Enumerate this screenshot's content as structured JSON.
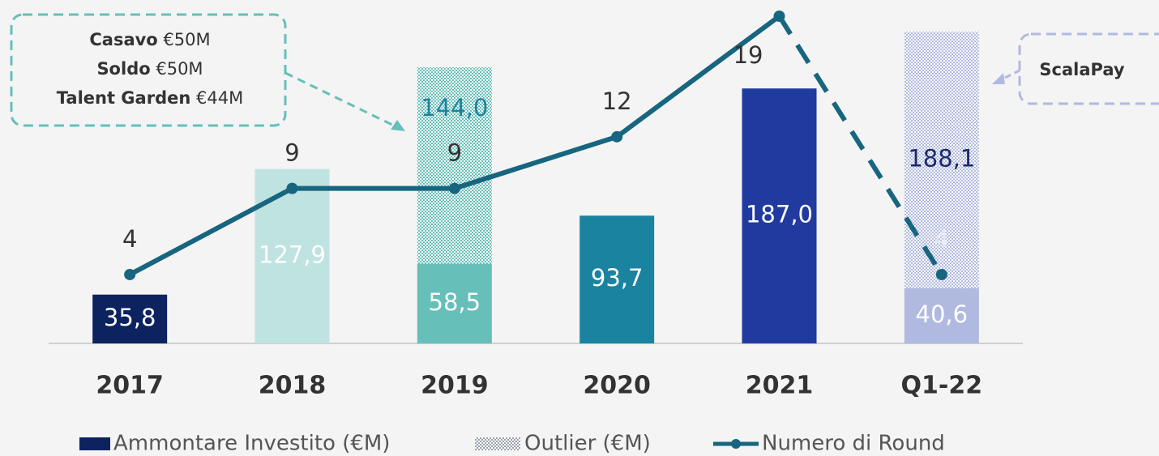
{
  "chart_data": {
    "type": "bar_line",
    "categories": [
      "2017",
      "2018",
      "2019",
      "2020",
      "2021",
      "Q1-22"
    ],
    "series": [
      {
        "name": "Ammontare Investito (€M)",
        "color": "#0d2360",
        "bar_colors": [
          "#0d2360",
          "#bfe3e1",
          "#66bfb8",
          "#1a83a0",
          "#213a9f",
          "#b0b9e0"
        ],
        "values": [
          35.8,
          127.9,
          58.5,
          93.7,
          187.0,
          40.6
        ],
        "value_labels": [
          "35,8",
          "127,9",
          "58,5",
          "93,7",
          "187,0",
          "40,6"
        ]
      },
      {
        "name": "Outlier (€M)",
        "color": "#9aa3ad",
        "pattern": "hatched",
        "bar_colors": [
          null,
          null,
          "#66bfb8",
          null,
          null,
          "#b0b9e0"
        ],
        "label_colors": [
          null,
          null,
          "#1a83a0",
          null,
          null,
          "#1a2a6c"
        ],
        "values": [
          null,
          null,
          144.0,
          null,
          null,
          188.1
        ],
        "value_labels": [
          null,
          null,
          "144,0",
          null,
          null,
          "188,1"
        ]
      },
      {
        "name": "Numero di Round",
        "color": "#17657f",
        "axis": "y2",
        "dashed_from": 4,
        "values": [
          4,
          9,
          9,
          12,
          19,
          4
        ]
      }
    ],
    "ylim": [
      0,
      240
    ],
    "y2lim": [
      0,
      19
    ],
    "annotations": [
      {
        "lines": [
          {
            "name": "Casavo",
            "amount": "€50M"
          },
          {
            "name": "Soldo",
            "amount": "€50M"
          },
          {
            "name": "Talent Garden",
            "amount": "€44M"
          }
        ],
        "color": "#66bfb8"
      },
      {
        "lines": [
          {
            "name": "ScalaPay"
          }
        ],
        "color": "#b0b9e0"
      }
    ]
  }
}
